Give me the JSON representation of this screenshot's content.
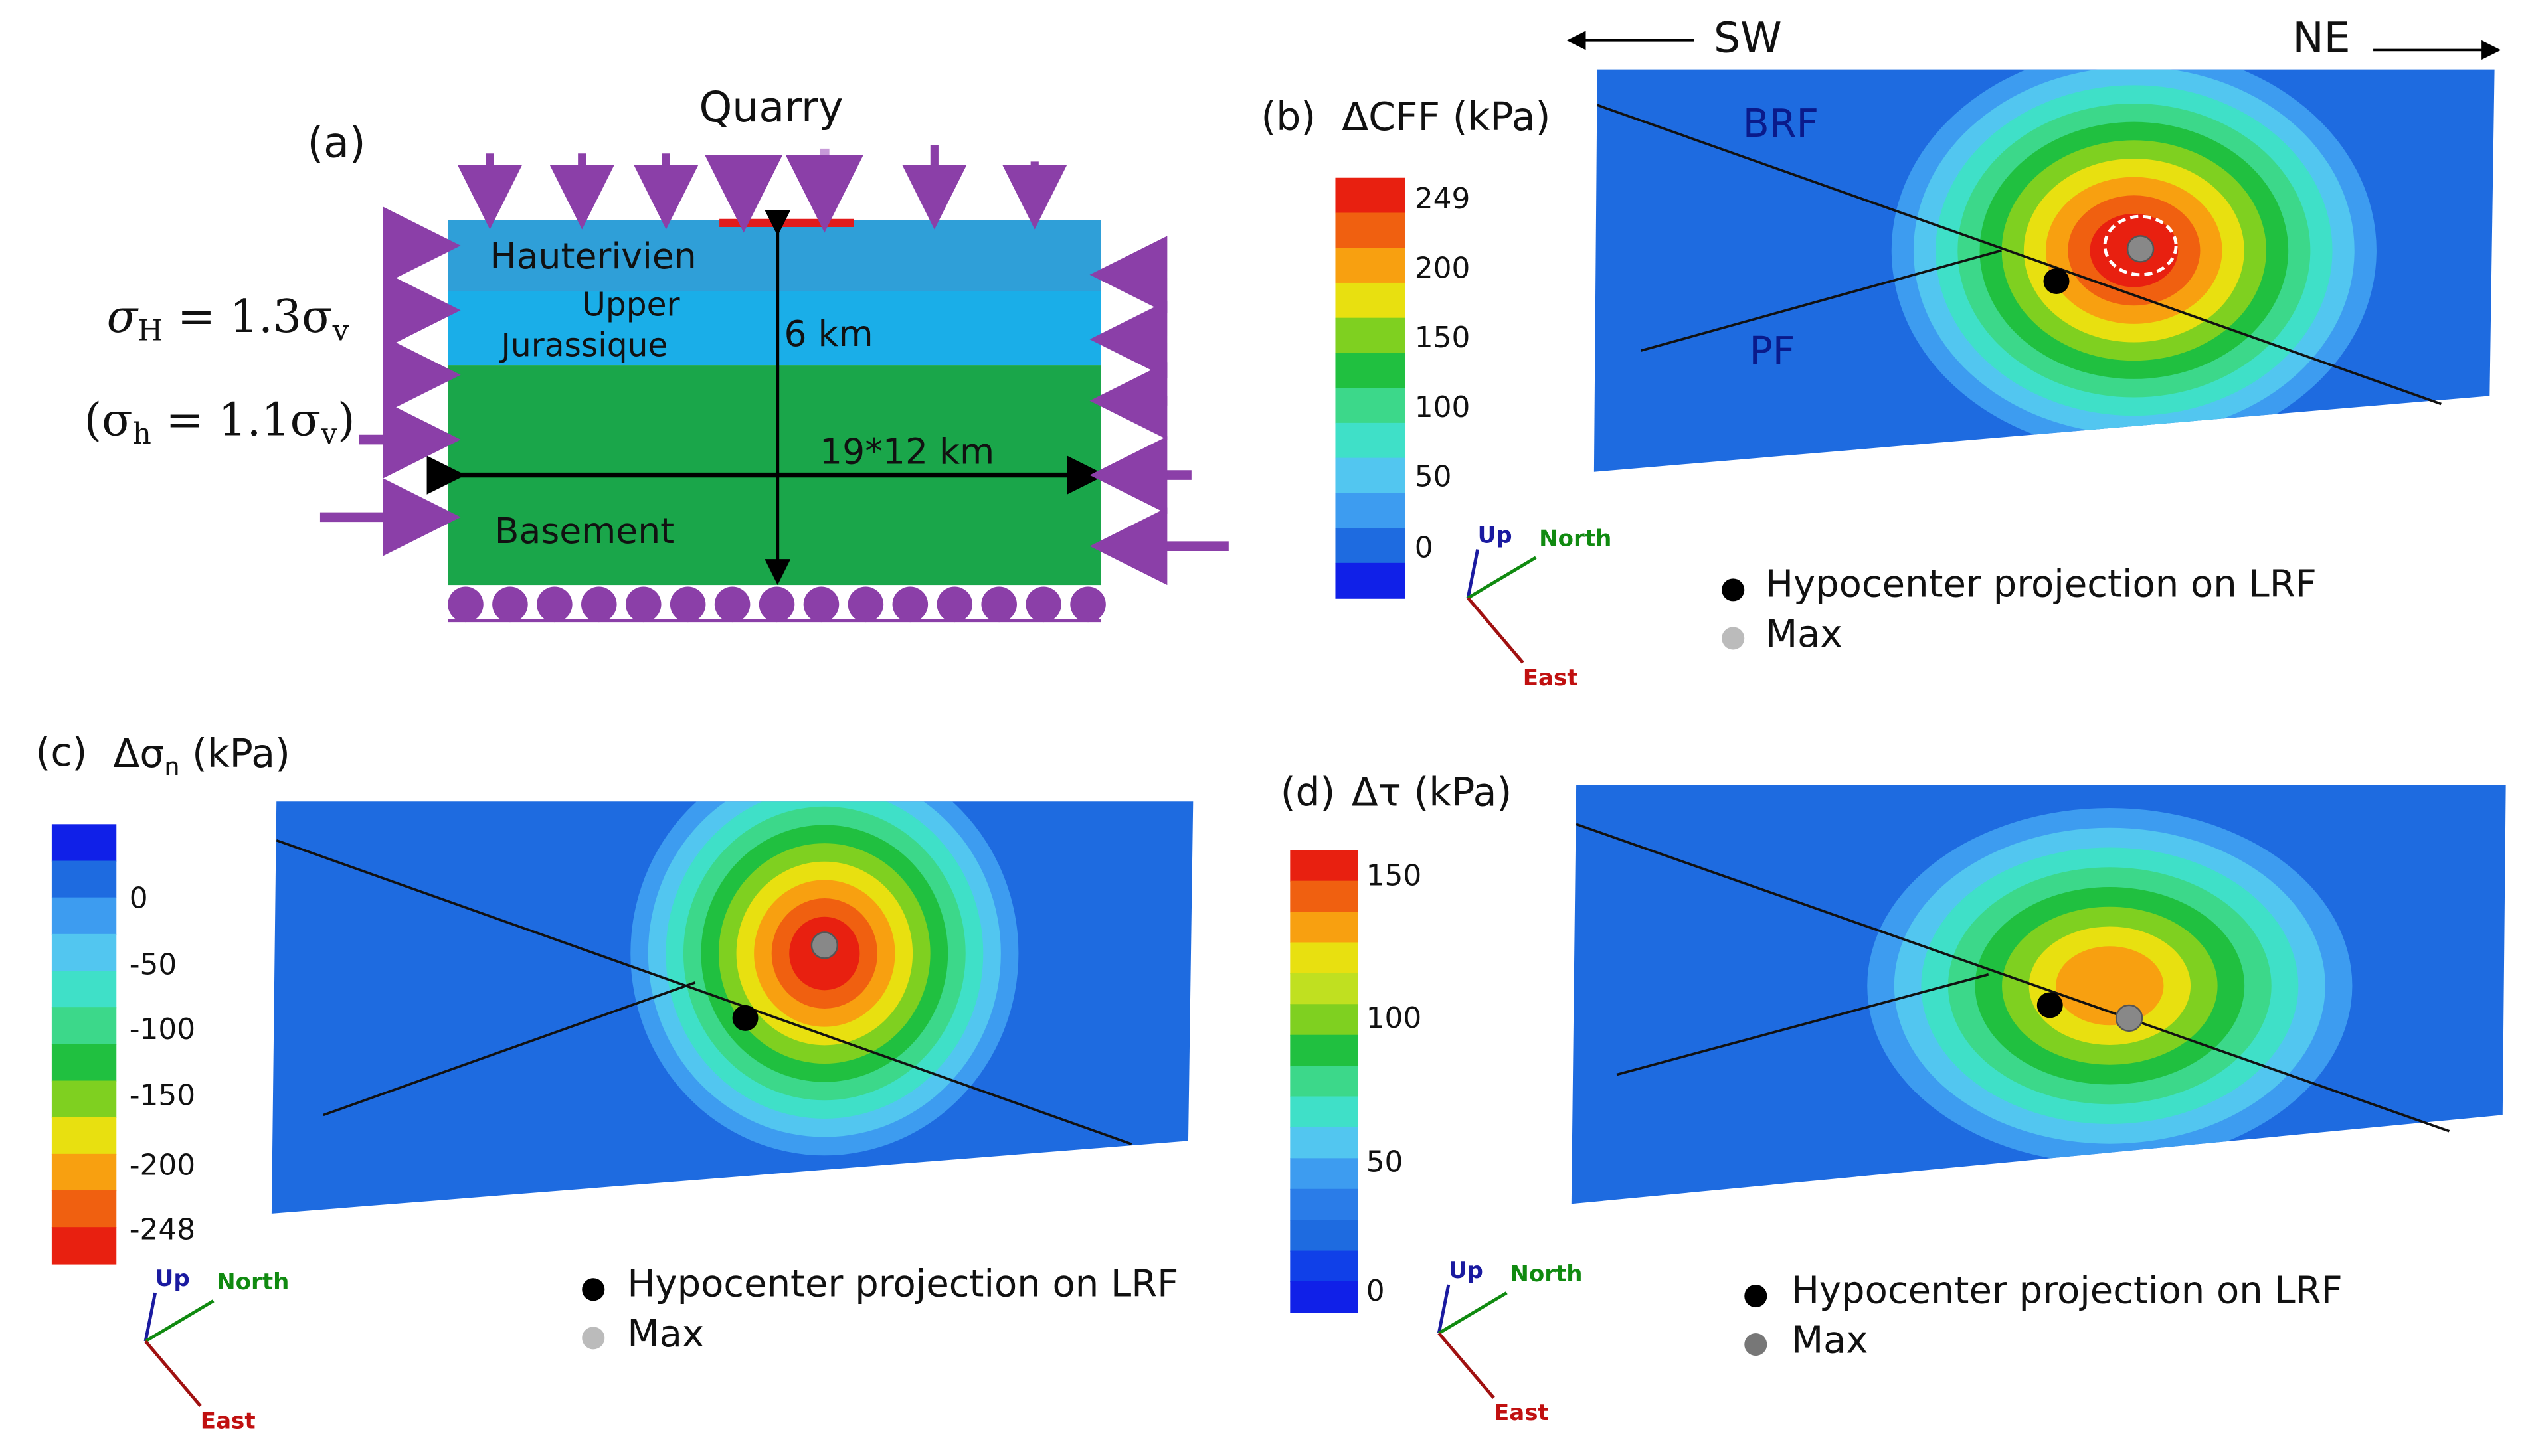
{
  "panel_a": {
    "label": "(a)",
    "quarry": "Quarry",
    "layers": [
      "Hauterivien",
      "Upper",
      "Jurassique",
      "Basement"
    ],
    "depth": "6 km",
    "extent": "19*12 km",
    "sigma_H": {
      "lhs": "σ",
      "lhs_sub": "H",
      "rhs": " = 1.3σ",
      "rhs_sub": "v"
    },
    "sigma_h": {
      "lhs": "(σ",
      "lhs_sub": "h",
      "rhs": " = 1.1σ",
      "rhs_sub": "v",
      "close": ")"
    }
  },
  "panel_b": {
    "label": "(b)",
    "title": "ΔCFF (kPa)",
    "colorbar_labels": [
      "249",
      "200",
      "150",
      "100",
      "50",
      "0"
    ],
    "direction_left": "SW",
    "direction_right": "NE",
    "faults": [
      "BRF",
      "PF"
    ],
    "axes": [
      "Up",
      "North",
      "East"
    ],
    "legend": [
      "Hypocenter projection on LRF",
      "Max"
    ]
  },
  "panel_c": {
    "label": "(c)",
    "title": {
      "main": "Δσ",
      "sub": "n",
      "unit": " (kPa)"
    },
    "colorbar_labels": [
      "0",
      "-50",
      "-100",
      "-150",
      "-200",
      "-248"
    ],
    "axes": [
      "Up",
      "North",
      "East"
    ],
    "legend": [
      "Hypocenter projection on LRF",
      "Max"
    ]
  },
  "panel_d": {
    "label": "(d)",
    "title": "Δτ (kPa)",
    "colorbar_labels": [
      "150",
      "100",
      "50",
      "0"
    ],
    "axes": [
      "Up",
      "North",
      "East"
    ],
    "legend": [
      "Hypocenter projection on LRF",
      "Max"
    ]
  }
}
